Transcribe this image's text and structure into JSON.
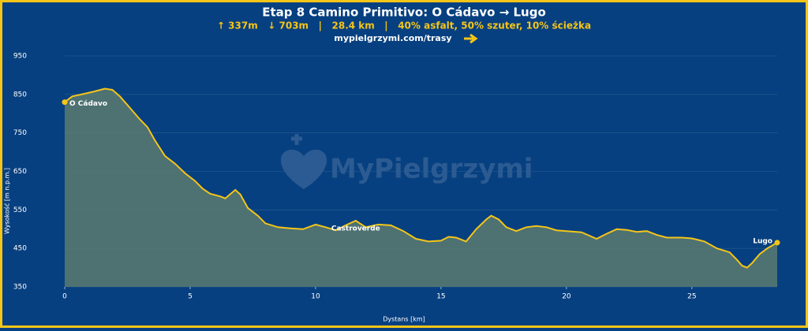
{
  "chart_data": {
    "type": "area",
    "title": "Etap 8 Camino Primitivo: O Cádavo → Lugo",
    "subtitle": "↑ 337m   ↓ 703m   |   28.4 km   |   40% asfalt, 50% szuter, 10% ścieżka",
    "link": "mypielgrzymi.com/trasy",
    "watermark": "MyPielgrzymi",
    "xlabel": "Dystans [km]",
    "ylabel": "Wysokość [m n.p.m.]",
    "x": [
      0,
      0.3,
      0.8,
      1.2,
      1.6,
      1.9,
      2.2,
      2.6,
      3.0,
      3.3,
      3.6,
      4.0,
      4.4,
      4.8,
      5.2,
      5.5,
      5.8,
      6.2,
      6.4,
      6.8,
      7.0,
      7.3,
      7.7,
      8.0,
      8.5,
      9.0,
      9.5,
      10.0,
      10.4,
      10.8,
      11.2,
      11.6,
      12.0,
      12.5,
      13.0,
      13.5,
      14.0,
      14.5,
      15.0,
      15.3,
      15.6,
      16.0,
      16.4,
      16.8,
      17.0,
      17.3,
      17.6,
      18.0,
      18.4,
      18.8,
      19.2,
      19.6,
      20.0,
      20.6,
      21.2,
      21.6,
      22.0,
      22.4,
      22.8,
      23.2,
      23.6,
      24.0,
      24.6,
      25.0,
      25.5,
      26.0,
      26.5,
      26.8,
      27.0,
      27.2,
      27.4,
      27.7,
      28.0,
      28.4
    ],
    "values": [
      830,
      845,
      852,
      858,
      865,
      862,
      845,
      815,
      785,
      765,
      730,
      690,
      670,
      645,
      625,
      605,
      592,
      585,
      580,
      602,
      590,
      555,
      535,
      515,
      505,
      502,
      500,
      512,
      505,
      497,
      510,
      522,
      505,
      512,
      510,
      495,
      475,
      468,
      470,
      480,
      478,
      468,
      500,
      525,
      535,
      525,
      505,
      495,
      505,
      508,
      505,
      497,
      495,
      492,
      475,
      488,
      500,
      498,
      493,
      495,
      485,
      478,
      478,
      476,
      468,
      450,
      440,
      420,
      405,
      400,
      412,
      435,
      450,
      465
    ],
    "color": "#f5c518",
    "fill": "#5a7a70",
    "annotations": [
      {
        "label": "O Cádavo",
        "x": 0,
        "y": 830
      },
      {
        "label": "Castroverde",
        "x": 11.6,
        "y": 522
      },
      {
        "label": "Lugo",
        "x": 28.4,
        "y": 465
      }
    ],
    "xlim": [
      0,
      28.4
    ],
    "ylim": [
      350,
      950
    ],
    "xticks": [
      0,
      5,
      10,
      15,
      20,
      25
    ],
    "yticks": [
      350,
      450,
      550,
      650,
      750,
      850,
      950
    ],
    "grid": true
  }
}
